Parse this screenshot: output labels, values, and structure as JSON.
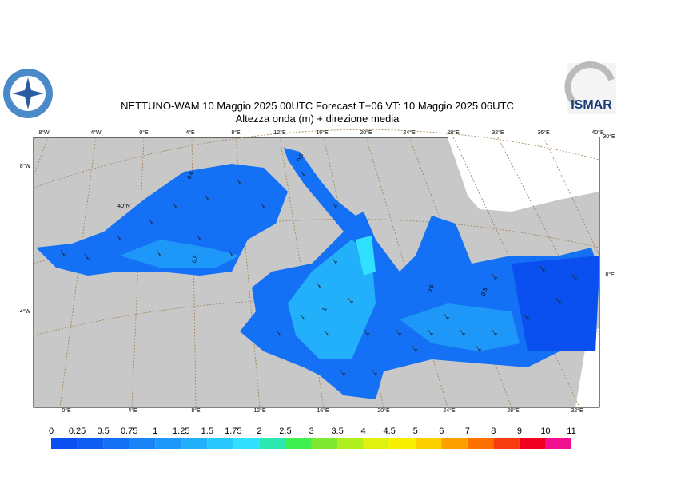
{
  "header": {
    "title": "NETTUNO-WAM  10   Maggio  2025 00UTC Forecast T+06 VT: 10   Maggio  2025 06UTC",
    "subtitle": "Altezza onda (m) + direzione media",
    "logo": "ISMAR"
  },
  "map": {
    "top_lon_labels": [
      "8°W",
      "4°W",
      "0°E",
      "4°E",
      "8°E",
      "12°E",
      "16°E",
      "20°E",
      "24°E",
      "28°E",
      "32°E",
      "36°E",
      "40°E"
    ],
    "bottom_lon_labels": [
      "0°E",
      "4°E",
      "8°E",
      "12°E",
      "16°E",
      "20°E",
      "24°E",
      "28°E",
      "32°E"
    ],
    "left_labels": [
      "8°W",
      "4°W"
    ],
    "right_labels": [
      "30°E",
      "8°E"
    ],
    "inner_label": "40°N",
    "contour_labels": [
      "0.6",
      "0.5",
      "0.5",
      "1",
      "0.5",
      "0.5"
    ]
  },
  "colorbar": {
    "levels": [
      0,
      0.25,
      0.5,
      0.75,
      1,
      1.25,
      1.5,
      1.75,
      2,
      2.5,
      3,
      3.5,
      4,
      4.5,
      5,
      6,
      7,
      8,
      9,
      10,
      11
    ],
    "colors": [
      "#0a4ff0",
      "#0f5ef2",
      "#1470f4",
      "#1a84f6",
      "#1e98f8",
      "#22b0fa",
      "#28c8fc",
      "#30e0fe",
      "#2ae8b0",
      "#40f050",
      "#7ee830",
      "#b0ee20",
      "#e0f010",
      "#f8f000",
      "#fcd000",
      "#fca000",
      "#fc7000",
      "#f83c10",
      "#f00020",
      "#f01090"
    ]
  }
}
